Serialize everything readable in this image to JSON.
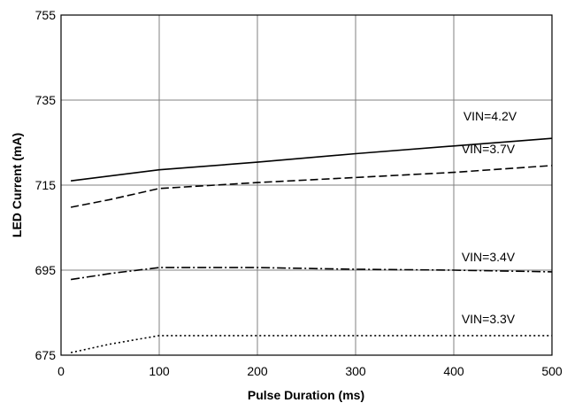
{
  "chart_data": {
    "type": "line",
    "xlabel": "Pulse Duration (ms)",
    "ylabel": "LED Current (mA)",
    "xlim": [
      0,
      500
    ],
    "ylim": [
      675,
      755
    ],
    "xticks": [
      0,
      100,
      200,
      300,
      400,
      500
    ],
    "yticks": [
      675,
      695,
      715,
      735,
      755
    ],
    "grid": true,
    "series": [
      {
        "name": "VIN=4.2V",
        "line_style": "solid",
        "x": [
          10,
          100,
          200,
          300,
          400,
          500
        ],
        "y": [
          716.0,
          718.6,
          720.4,
          722.4,
          724.2,
          726.0
        ]
      },
      {
        "name": "VIN=3.7V",
        "line_style": "dashed",
        "x": [
          10,
          50,
          100,
          200,
          300,
          400,
          500
        ],
        "y": [
          709.8,
          711.6,
          714.2,
          715.6,
          716.8,
          718.0,
          719.6
        ]
      },
      {
        "name": "VIN=3.4V",
        "line_style": "dash-dot",
        "x": [
          10,
          50,
          100,
          200,
          300,
          400,
          500
        ],
        "y": [
          692.8,
          694.2,
          695.6,
          695.6,
          695.2,
          695.0,
          694.6
        ]
      },
      {
        "name": "VIN=3.3V",
        "line_style": "dotted",
        "x": [
          10,
          50,
          100,
          200,
          300,
          400,
          500
        ],
        "y": [
          675.6,
          677.6,
          679.6,
          679.6,
          679.6,
          679.6,
          679.6
        ]
      }
    ]
  }
}
